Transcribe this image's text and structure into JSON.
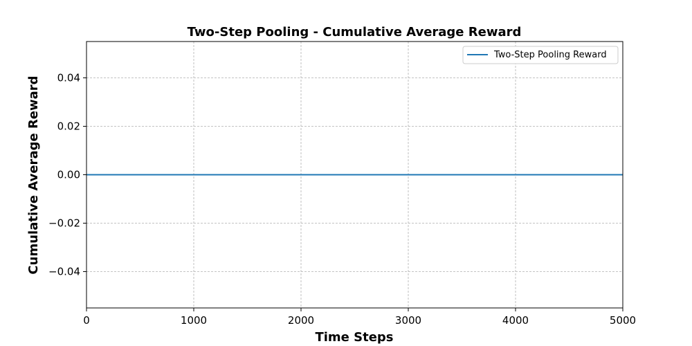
{
  "chart_data": {
    "type": "line",
    "title": "Two-Step Pooling - Cumulative Average Reward",
    "xlabel": "Time Steps",
    "ylabel": "Cumulative Average Reward",
    "xlim": [
      0,
      5000
    ],
    "ylim": [
      -0.055,
      0.055
    ],
    "xticks": [
      0,
      1000,
      2000,
      3000,
      4000,
      5000
    ],
    "xtick_labels": [
      "0",
      "1000",
      "2000",
      "3000",
      "4000",
      "5000"
    ],
    "yticks": [
      -0.04,
      -0.02,
      0.0,
      0.02,
      0.04
    ],
    "ytick_labels": [
      "−0.04",
      "−0.02",
      "0.00",
      "0.02",
      "0.04"
    ],
    "grid": true,
    "legend_position": "top-right",
    "series": [
      {
        "name": "Two-Step Pooling Reward",
        "color": "#1f77b4",
        "x": [
          0,
          1000,
          2000,
          3000,
          4000,
          5000
        ],
        "y": [
          0,
          0,
          0,
          0,
          0,
          0
        ]
      }
    ]
  }
}
